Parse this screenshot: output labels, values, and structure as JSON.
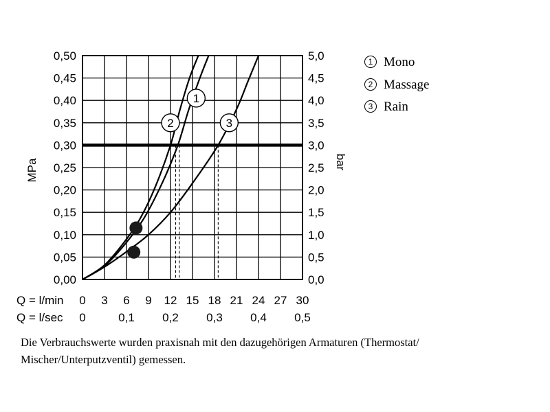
{
  "chart_data": {
    "type": "line",
    "ylabel_left": "MPa",
    "ylabel_right": "bar",
    "y_left": {
      "range": [
        0,
        0.5
      ],
      "ticks": [
        "0,00",
        "0,05",
        "0,10",
        "0,15",
        "0,20",
        "0,25",
        "0,30",
        "0,35",
        "0,40",
        "0,45",
        "0,50"
      ]
    },
    "y_right": {
      "range": [
        0,
        5
      ],
      "ticks": [
        "0,0",
        "0,5",
        "1,0",
        "1,5",
        "2,0",
        "2,5",
        "3,0",
        "3,5",
        "4,0",
        "4,5",
        "5,0"
      ]
    },
    "x_lmin": {
      "label": "Q = l/min",
      "range": [
        0,
        30
      ],
      "ticks": [
        "0",
        "3",
        "6",
        "9",
        "12",
        "15",
        "18",
        "21",
        "24",
        "27",
        "30"
      ]
    },
    "x_lsec": {
      "label": "Q = l/sec",
      "ticks": [
        {
          "value": 0,
          "text": "0"
        },
        {
          "value": 0.1,
          "text": "0,1"
        },
        {
          "value": 0.2,
          "text": "0,2"
        },
        {
          "value": 0.3,
          "text": "0,3"
        },
        {
          "value": 0.4,
          "text": "0,4"
        },
        {
          "value": 0.5,
          "text": "0,5"
        }
      ]
    },
    "grid": true,
    "reference_line": {
      "y": 0.3
    },
    "series": [
      {
        "id": "1",
        "name": "Mono",
        "x": [
          0,
          3,
          6,
          8.5,
          11,
          13,
          14.5,
          16,
          17.2
        ],
        "y": [
          0,
          0.03,
          0.083,
          0.14,
          0.22,
          0.3,
          0.38,
          0.45,
          0.5
        ],
        "label_at": [
          15.5,
          0.405
        ]
      },
      {
        "id": "2",
        "name": "Massage",
        "x": [
          0,
          3,
          6,
          8,
          10,
          12,
          13.3,
          14.6,
          15.8
        ],
        "y": [
          0,
          0.032,
          0.09,
          0.14,
          0.21,
          0.3,
          0.38,
          0.45,
          0.5
        ],
        "label_at": [
          12,
          0.35
        ]
      },
      {
        "id": "3",
        "name": "Rain",
        "x": [
          0,
          3,
          6,
          9,
          12,
          15,
          18.5,
          21,
          22.5,
          24
        ],
        "y": [
          0,
          0.028,
          0.062,
          0.1,
          0.15,
          0.215,
          0.3,
          0.38,
          0.44,
          0.5
        ],
        "label_at": [
          20,
          0.35
        ]
      }
    ],
    "markers": [
      {
        "x": 7.3,
        "y": 0.115
      },
      {
        "x": 7,
        "y": 0.061
      }
    ],
    "dashed_drops": [
      {
        "x": 12.7,
        "y": 0.3
      },
      {
        "x": 13.2,
        "y": 0.3
      },
      {
        "x": 18.5,
        "y": 0.3
      }
    ]
  },
  "legend": [
    {
      "num": "1",
      "label": "Mono"
    },
    {
      "num": "2",
      "label": "Massage"
    },
    {
      "num": "3",
      "label": "Rain"
    }
  ],
  "note": "Die Verbrauchswerte wurden praxisnah mit den dazugehörigen Armaturen (Thermostat/ Mischer/Unterputzventil) gemessen."
}
